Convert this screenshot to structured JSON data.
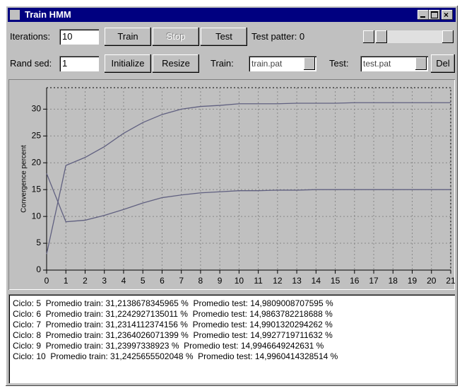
{
  "window": {
    "title": "Train HMM"
  },
  "controls": {
    "iterations_label": "Iterations:",
    "iterations_value": "10",
    "rand_seed_label": "Rand sed:",
    "rand_seed_value": "1",
    "train_button": "Train",
    "stop_button": "Stop",
    "test_button": "Test",
    "initialize_button": "Initialize",
    "resize_button": "Resize",
    "del_button": "Del",
    "test_pattern_label": "Test patter: 0",
    "train_label": "Train:",
    "train_file": "train.pat",
    "test_label": "Test:",
    "test_file": "test.pat"
  },
  "chart_data": {
    "type": "line",
    "y_label": "Convergence percent",
    "x": [
      0,
      1,
      2,
      3,
      4,
      5,
      6,
      7,
      8,
      9,
      10,
      11,
      12,
      13,
      14,
      15,
      16,
      17,
      18,
      19,
      20,
      21
    ],
    "xlim": [
      0,
      21
    ],
    "xticks": [
      0,
      1,
      2,
      3,
      4,
      5,
      6,
      7,
      8,
      9,
      10,
      11,
      12,
      13,
      14,
      15,
      16,
      17,
      18,
      19,
      20,
      21
    ],
    "ylim": [
      0,
      34
    ],
    "yticks": [
      0,
      5,
      10,
      15,
      20,
      25,
      30
    ],
    "grid": true,
    "series": [
      {
        "color": "#606080",
        "values": [
          3,
          19.5,
          21,
          23,
          25.5,
          27.5,
          29,
          30,
          30.5,
          30.7,
          31,
          31,
          31,
          31.1,
          31.1,
          31.1,
          31.2,
          31.2,
          31.2,
          31.2,
          31.2,
          31.2
        ]
      },
      {
        "color": "#606080",
        "values": [
          18,
          9,
          9.3,
          10.2,
          11.3,
          12.5,
          13.5,
          14,
          14.4,
          14.6,
          14.8,
          14.8,
          14.9,
          14.9,
          15,
          15,
          15,
          15,
          15,
          15,
          15,
          15
        ]
      }
    ]
  },
  "log": {
    "lines": [
      "Ciclo: 5  Promedio train: 31,2138678345965 %  Promedio test: 14,9809008707595 %",
      "Ciclo: 6  Promedio train: 31,2242927135011 %  Promedio test: 14,9863782218688 %",
      "Ciclo: 7  Promedio train: 31,2314112374156 %  Promedio test: 14,9901320294262 %",
      "Ciclo: 8  Promedio train: 31,2364026071399 %  Promedio test: 14,9927719711632 %",
      "Ciclo: 9  Promedio train: 31,23997338923 %  Promedio test: 14,9946649242631 %",
      "Ciclo: 10  Promedio train: 31,2425655502048 %  Promedio test: 14,9960414328514 %"
    ]
  }
}
